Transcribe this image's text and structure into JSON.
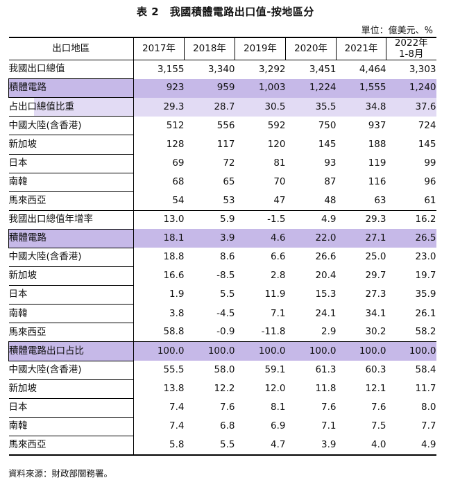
{
  "title": "表 2　我國積體電路出口值-按地區分",
  "unit": "單位：億美元、%",
  "headers": [
    "出口地區",
    "2017年",
    "2018年",
    "2019年",
    "2020年",
    "2021年",
    "2022年",
    "1-8月"
  ],
  "rows": [
    {
      "label": "我國出口總值",
      "values": [
        "3,155",
        "3,340",
        "3,292",
        "3,451",
        "4,464",
        "3,303"
      ]
    },
    {
      "label": "積體電路",
      "values": [
        "923",
        "959",
        "1,003",
        "1,224",
        "1,555",
        "1,240"
      ]
    },
    {
      "label": "占出口總值比重",
      "values": [
        "29.3",
        "28.7",
        "30.5",
        "35.5",
        "34.8",
        "37.6"
      ]
    },
    {
      "label": "中國大陸(含香港)",
      "values": [
        "512",
        "556",
        "592",
        "750",
        "937",
        "724"
      ]
    },
    {
      "label": "新加坡",
      "values": [
        "128",
        "117",
        "120",
        "145",
        "188",
        "145"
      ]
    },
    {
      "label": "日本",
      "values": [
        "69",
        "72",
        "81",
        "93",
        "119",
        "99"
      ]
    },
    {
      "label": "南韓",
      "values": [
        "68",
        "65",
        "70",
        "87",
        "116",
        "96"
      ]
    },
    {
      "label": "馬來西亞",
      "values": [
        "54",
        "53",
        "47",
        "48",
        "63",
        "61"
      ]
    },
    {
      "label": "我國出口總值年增率",
      "values": [
        "13.0",
        "5.9",
        "-1.5",
        "4.9",
        "29.3",
        "16.2"
      ]
    },
    {
      "label": "積體電路",
      "values": [
        "18.1",
        "3.9",
        "4.6",
        "22.0",
        "27.1",
        "26.5"
      ]
    },
    {
      "label": "中國大陸(含香港)",
      "values": [
        "18.8",
        "8.6",
        "6.6",
        "26.6",
        "25.0",
        "23.0"
      ]
    },
    {
      "label": "新加坡",
      "values": [
        "16.6",
        "-8.5",
        "2.8",
        "20.4",
        "29.7",
        "19.7"
      ]
    },
    {
      "label": "日本",
      "values": [
        "1.9",
        "5.5",
        "11.9",
        "15.3",
        "27.3",
        "35.9"
      ]
    },
    {
      "label": "南韓",
      "values": [
        "3.8",
        "-4.5",
        "7.1",
        "24.1",
        "34.1",
        "26.1"
      ]
    },
    {
      "label": "馬來西亞",
      "values": [
        "58.8",
        "-0.9",
        "-11.8",
        "2.9",
        "30.2",
        "58.2"
      ]
    },
    {
      "label": "積體電路出口占比",
      "values": [
        "100.0",
        "100.0",
        "100.0",
        "100.0",
        "100.0",
        "100.0"
      ]
    },
    {
      "label": "中國大陸(含香港)",
      "values": [
        "55.5",
        "58.0",
        "59.1",
        "61.3",
        "60.3",
        "58.4"
      ]
    },
    {
      "label": "新加坡",
      "values": [
        "13.8",
        "12.2",
        "12.0",
        "11.8",
        "12.1",
        "11.7"
      ]
    },
    {
      "label": "日本",
      "values": [
        "7.4",
        "7.6",
        "8.1",
        "7.6",
        "7.6",
        "8.0"
      ]
    },
    {
      "label": "南韓",
      "values": [
        "7.4",
        "6.8",
        "6.9",
        "7.1",
        "7.5",
        "7.7"
      ]
    },
    {
      "label": "馬來西亞",
      "values": [
        "5.8",
        "5.5",
        "4.7",
        "3.9",
        "4.0",
        "4.9"
      ]
    }
  ],
  "source": "資料來源：財政部關務署。",
  "colors": {
    "purple": "#c6b9e8",
    "light_purple": "#e2dbf4"
  }
}
